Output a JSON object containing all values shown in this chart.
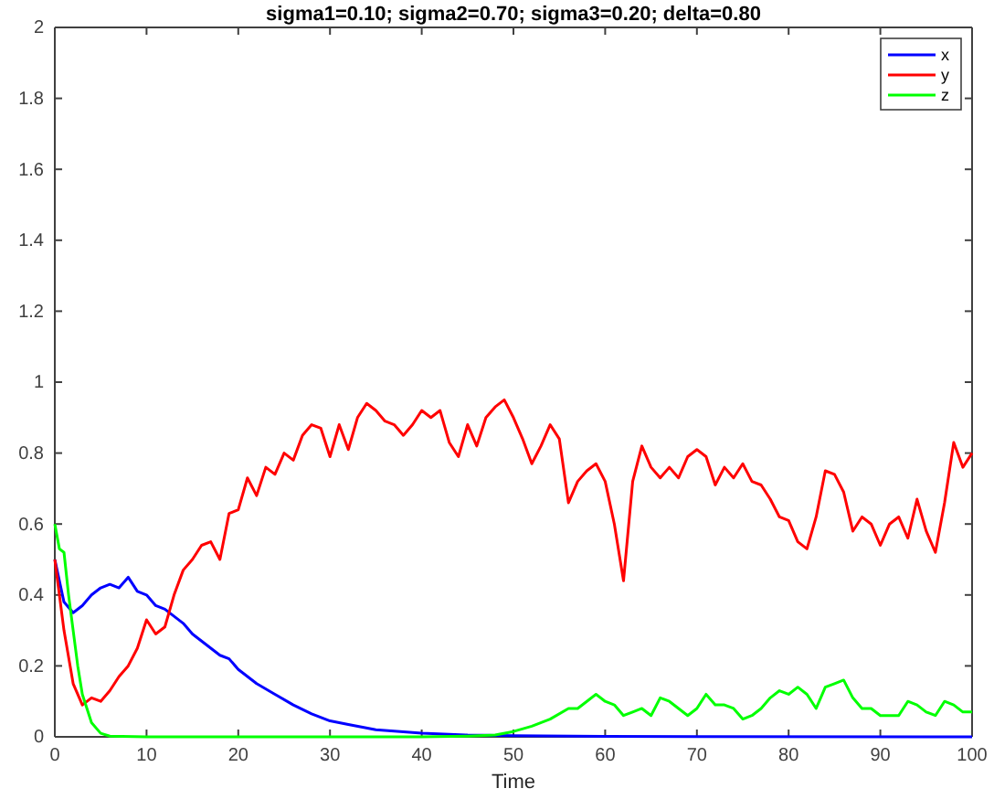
{
  "chart_data": {
    "type": "line",
    "title": "sigma1=0.10; sigma2=0.70; sigma3=0.20; delta=0.80",
    "xlabel": "Time",
    "xlim": [
      0,
      100
    ],
    "xticks": [
      0,
      10,
      20,
      30,
      40,
      50,
      60,
      70,
      80,
      90,
      100
    ],
    "ylim": [
      0,
      2
    ],
    "yticks": [
      0,
      0.2,
      0.4,
      0.6,
      0.8,
      1,
      1.2,
      1.4,
      1.6,
      1.8,
      2
    ],
    "legend": "top right",
    "grid": false,
    "series": [
      {
        "name": "x",
        "color": "#0000ff",
        "x": [
          0,
          1,
          2,
          3,
          4,
          5,
          6,
          7,
          8,
          9,
          10,
          11,
          12,
          13,
          14,
          15,
          16,
          17,
          18,
          19,
          20,
          22,
          24,
          26,
          28,
          30,
          32,
          35,
          40,
          45,
          50,
          60,
          100
        ],
        "values": [
          0.5,
          0.38,
          0.35,
          0.37,
          0.4,
          0.42,
          0.43,
          0.42,
          0.45,
          0.41,
          0.4,
          0.37,
          0.36,
          0.34,
          0.32,
          0.29,
          0.27,
          0.25,
          0.23,
          0.22,
          0.19,
          0.15,
          0.12,
          0.09,
          0.065,
          0.045,
          0.035,
          0.02,
          0.01,
          0.005,
          0.003,
          0.001,
          0
        ]
      },
      {
        "name": "y",
        "color": "#ff0000",
        "x": [
          0,
          1,
          2,
          3,
          4,
          5,
          6,
          7,
          8,
          9,
          10,
          11,
          12,
          13,
          14,
          15,
          16,
          17,
          18,
          19,
          20,
          21,
          22,
          23,
          24,
          25,
          26,
          27,
          28,
          29,
          30,
          31,
          32,
          33,
          34,
          35,
          36,
          37,
          38,
          39,
          40,
          41,
          42,
          43,
          44,
          45,
          46,
          47,
          48,
          49,
          50,
          51,
          52,
          53,
          54,
          55,
          56,
          57,
          58,
          59,
          60,
          61,
          62,
          63,
          64,
          65,
          66,
          67,
          68,
          69,
          70,
          71,
          72,
          73,
          74,
          75,
          76,
          77,
          78,
          79,
          80,
          81,
          82,
          83,
          84,
          85,
          86,
          87,
          88,
          89,
          90,
          91,
          92,
          93,
          94,
          95,
          96,
          97,
          98,
          99,
          100
        ],
        "values": [
          0.5,
          0.3,
          0.15,
          0.09,
          0.11,
          0.1,
          0.13,
          0.17,
          0.2,
          0.25,
          0.33,
          0.29,
          0.31,
          0.4,
          0.47,
          0.5,
          0.54,
          0.55,
          0.5,
          0.63,
          0.64,
          0.73,
          0.68,
          0.76,
          0.74,
          0.8,
          0.78,
          0.85,
          0.88,
          0.87,
          0.79,
          0.88,
          0.81,
          0.9,
          0.94,
          0.92,
          0.89,
          0.88,
          0.85,
          0.88,
          0.92,
          0.9,
          0.92,
          0.83,
          0.79,
          0.88,
          0.82,
          0.9,
          0.93,
          0.95,
          0.9,
          0.84,
          0.77,
          0.82,
          0.88,
          0.84,
          0.66,
          0.72,
          0.75,
          0.77,
          0.72,
          0.6,
          0.44,
          0.72,
          0.82,
          0.76,
          0.73,
          0.76,
          0.73,
          0.79,
          0.81,
          0.79,
          0.71,
          0.76,
          0.73,
          0.77,
          0.72,
          0.71,
          0.67,
          0.62,
          0.61,
          0.55,
          0.53,
          0.62,
          0.75,
          0.74,
          0.69,
          0.58,
          0.62,
          0.6,
          0.54,
          0.6,
          0.62,
          0.56,
          0.67,
          0.58,
          0.52,
          0.66,
          0.83,
          0.76,
          0.8
        ]
      },
      {
        "name": "z",
        "color": "#00ff00",
        "x": [
          0,
          0.5,
          1,
          1.5,
          2,
          2.5,
          3,
          4,
          5,
          6,
          10,
          40,
          45,
          48,
          50,
          52,
          54,
          56,
          57,
          58,
          59,
          60,
          61,
          62,
          63,
          64,
          65,
          66,
          67,
          68,
          69,
          70,
          71,
          72,
          73,
          74,
          75,
          76,
          77,
          78,
          79,
          80,
          81,
          82,
          83,
          84,
          85,
          86,
          87,
          88,
          89,
          90,
          91,
          92,
          93,
          94,
          95,
          96,
          97,
          98,
          99,
          100
        ],
        "values": [
          0.6,
          0.53,
          0.52,
          0.4,
          0.3,
          0.2,
          0.12,
          0.04,
          0.01,
          0.002,
          0,
          0,
          0.002,
          0.005,
          0.015,
          0.03,
          0.05,
          0.08,
          0.08,
          0.1,
          0.12,
          0.1,
          0.09,
          0.06,
          0.07,
          0.08,
          0.06,
          0.11,
          0.1,
          0.08,
          0.06,
          0.08,
          0.12,
          0.09,
          0.09,
          0.08,
          0.05,
          0.06,
          0.08,
          0.11,
          0.13,
          0.12,
          0.14,
          0.12,
          0.08,
          0.14,
          0.15,
          0.16,
          0.11,
          0.08,
          0.08,
          0.06,
          0.06,
          0.06,
          0.1,
          0.09,
          0.07,
          0.06,
          0.1,
          0.09,
          0.07,
          0.07
        ]
      }
    ]
  }
}
